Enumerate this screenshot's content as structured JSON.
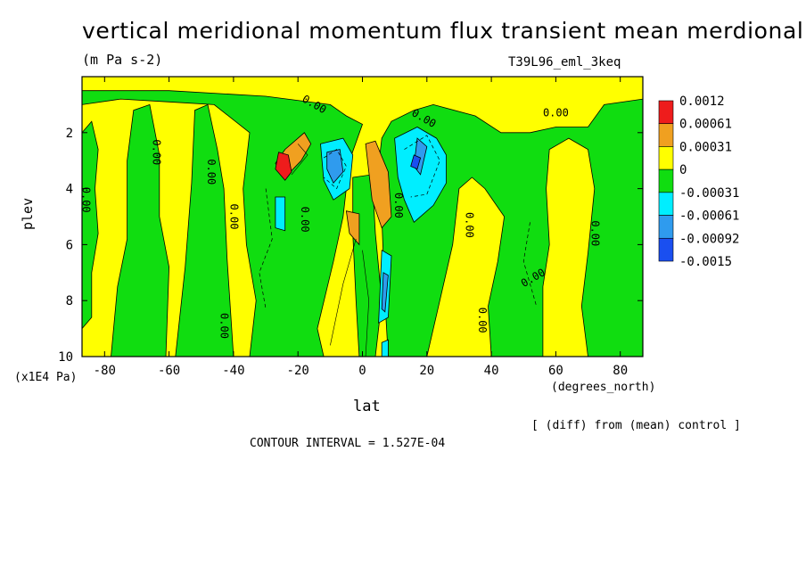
{
  "header": {
    "title": "vertical meridional momentum flux transient mean merdional",
    "units": "(m Pa s-2)",
    "experiment": "T39L96_eml_3keq"
  },
  "footer": {
    "diff_note": "[ (diff) from (mean) control ]",
    "contour_interval": "CONTOUR INTERVAL = 1.527E-04"
  },
  "colors": {
    "red": "#ee1c1c",
    "orange": "#f0a020",
    "yellow": "#ffff00",
    "green": "#10dd10",
    "cyan": "#00eeff",
    "light_blue": "#2f9bee",
    "blue": "#1a4ff0"
  },
  "chart_data": {
    "type": "heatmap",
    "title": "vertical meridional momentum flux transient mean merdional",
    "xlabel": "lat",
    "x_units": "(degrees_north)",
    "ylabel": "plev",
    "y_units": "(x1E4 Pa)",
    "xlim": [
      -87,
      87
    ],
    "ylim": [
      10,
      0
    ],
    "x_ticks": [
      -80,
      -60,
      -40,
      -20,
      0,
      20,
      40,
      60,
      80
    ],
    "y_ticks": [
      2,
      4,
      6,
      8,
      10
    ],
    "colorbar": {
      "levels": [
        "0.0012",
        "0.00061",
        "0.00031",
        "0",
        "-0.00031",
        "-0.00061",
        "-0.00092",
        "-0.0015"
      ],
      "colors": [
        "#ee1c1c",
        "#f0a020",
        "#ffff00",
        "#10dd10",
        "#00eeff",
        "#2f9bee",
        "#1a4ff0"
      ]
    },
    "contour_labels": [
      {
        "text": "0.00",
        "lat": -89,
        "plev": 4.4,
        "angle": 90
      },
      {
        "text": "0.00",
        "lat": -64,
        "plev": 2.7,
        "angle": 90
      },
      {
        "text": "0.00",
        "lat": -47,
        "plev": 3.4,
        "angle": 90
      },
      {
        "text": "0.00",
        "lat": -40,
        "plev": 5.0,
        "angle": 90
      },
      {
        "text": "0.00",
        "lat": -43,
        "plev": 8.9,
        "angle": 90
      },
      {
        "text": "0.00",
        "lat": -18,
        "plev": 5.1,
        "angle": 90
      },
      {
        "text": "0.00",
        "lat": -15,
        "plev": 1.0,
        "angle": 30
      },
      {
        "text": "0.00",
        "lat": 11,
        "plev": 4.6,
        "angle": 90
      },
      {
        "text": "0.00",
        "lat": 19,
        "plev": 1.5,
        "angle": 30
      },
      {
        "text": "0.00",
        "lat": 33,
        "plev": 5.3,
        "angle": 90
      },
      {
        "text": "0.00",
        "lat": 37,
        "plev": 8.7,
        "angle": 90
      },
      {
        "text": "0.00",
        "lat": 53,
        "plev": 7.2,
        "angle": -30
      },
      {
        "text": "0.00",
        "lat": 60,
        "plev": 1.3,
        "angle": 0
      },
      {
        "text": "0.00",
        "lat": 72,
        "plev": 5.6,
        "angle": 90
      }
    ]
  }
}
